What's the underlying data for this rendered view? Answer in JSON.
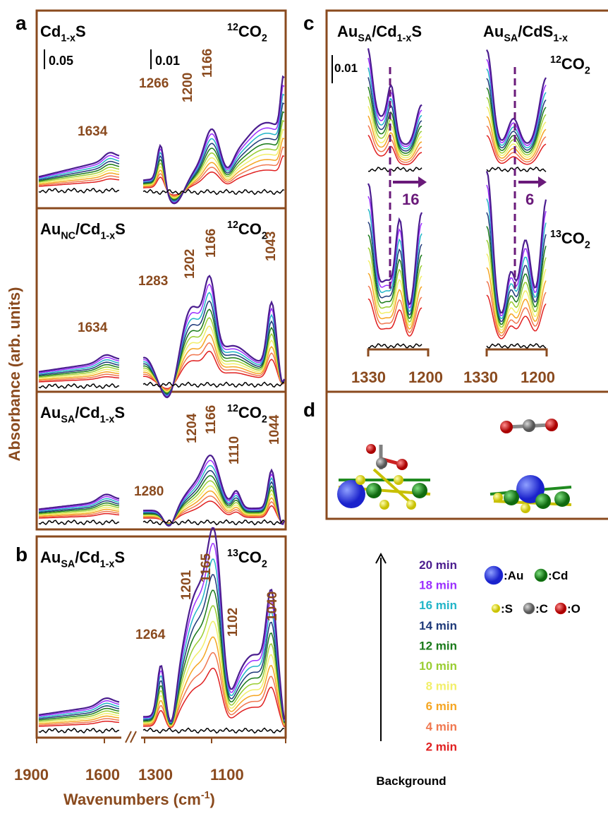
{
  "panel_labels": [
    "a",
    "b",
    "c",
    "d"
  ],
  "y_axis_label": "Absorbance (arb. units)",
  "x_axis_label": [
    {
      "text": "Wavenumbers (cm"
    },
    {
      "text": "-1",
      "sup": true
    },
    {
      "text": ")"
    }
  ],
  "x_ticks": [
    "1900",
    "1600",
    "1300",
    "1100"
  ],
  "panel_a": [
    {
      "sample": [
        {
          "text": "Cd"
        },
        {
          "text": "1-x",
          "sub": true
        },
        {
          "text": "S"
        }
      ],
      "gas": [
        {
          "text": "12",
          "sup": true
        },
        {
          "text": "CO"
        },
        {
          "text": "2",
          "sub": true
        }
      ],
      "scales": [
        "0.05",
        "0.01"
      ],
      "peaks": [
        "1634",
        "1266",
        "1200",
        "1166"
      ]
    },
    {
      "sample": [
        {
          "text": "Au"
        },
        {
          "text": "NC",
          "sub": true
        },
        {
          "text": "/Cd"
        },
        {
          "text": "1-x",
          "sub": true
        },
        {
          "text": "S"
        }
      ],
      "gas": [
        {
          "text": "12",
          "sup": true
        },
        {
          "text": "CO"
        },
        {
          "text": "2",
          "sub": true
        }
      ],
      "scales": [],
      "peaks": [
        "1634",
        "1283",
        "1202",
        "1166",
        "1043"
      ]
    },
    {
      "sample": [
        {
          "text": "Au"
        },
        {
          "text": "SA",
          "sub": true
        },
        {
          "text": "/Cd"
        },
        {
          "text": "1-x",
          "sub": true
        },
        {
          "text": "S"
        }
      ],
      "gas": [
        {
          "text": "12",
          "sup": true
        },
        {
          "text": "CO"
        },
        {
          "text": "2",
          "sub": true
        }
      ],
      "scales": [],
      "peaks": [
        "1280",
        "1204",
        "1166",
        "1110",
        "1044"
      ]
    }
  ],
  "panel_b": {
    "sample": [
      {
        "text": "Au"
      },
      {
        "text": "SA",
        "sub": true
      },
      {
        "text": "/Cd"
      },
      {
        "text": "1-x",
        "sub": true
      },
      {
        "text": "S"
      }
    ],
    "gas": [
      {
        "text": "13",
        "sup": true
      },
      {
        "text": "CO"
      },
      {
        "text": "2",
        "sub": true
      }
    ],
    "peaks": [
      "1264",
      "1201",
      "1165",
      "1102",
      "1040"
    ]
  },
  "panel_c": {
    "samples": [
      [
        {
          "text": "Au"
        },
        {
          "text": "SA",
          "sub": true
        },
        {
          "text": "/Cd"
        },
        {
          "text": "1-x",
          "sub": true
        },
        {
          "text": "S"
        }
      ],
      [
        {
          "text": "Au"
        },
        {
          "text": "SA",
          "sub": true
        },
        {
          "text": "/CdS"
        },
        {
          "text": "1-x",
          "sub": true
        }
      ]
    ],
    "gases": [
      [
        {
          "text": "12",
          "sup": true
        },
        {
          "text": "CO"
        },
        {
          "text": "2",
          "sub": true
        }
      ],
      [
        {
          "text": "13",
          "sup": true
        },
        {
          "text": "CO"
        },
        {
          "text": "2",
          "sub": true
        }
      ]
    ],
    "scale": "0.01",
    "shifts": [
      "16",
      "6"
    ],
    "x_ticks": [
      "1330",
      "1200",
      "1330",
      "1200"
    ]
  },
  "legend": {
    "times": [
      {
        "label": "20 min",
        "color": "#4b1d8f"
      },
      {
        "label": "18 min",
        "color": "#9b30ff"
      },
      {
        "label": "16 min",
        "color": "#22b5c8"
      },
      {
        "label": "14 min",
        "color": "#1f3a7a"
      },
      {
        "label": "12 min",
        "color": "#1a7a1a"
      },
      {
        "label": "10 min",
        "color": "#9acd32"
      },
      {
        "label": "8 min",
        "color": "#f2ef6a"
      },
      {
        "label": "6 min",
        "color": "#f5a623"
      },
      {
        "label": "4 min",
        "color": "#f07850"
      },
      {
        "label": "2 min",
        "color": "#e02020"
      }
    ],
    "background": "Background",
    "atoms": [
      {
        "label": ":Au",
        "color": "#2233dd"
      },
      {
        "label": ":Cd",
        "color": "#1f8a1f"
      },
      {
        "label": ":S",
        "color": "#e8e020"
      },
      {
        "label": ":C",
        "color": "#808080"
      },
      {
        "label": ":O",
        "color": "#dd1111"
      }
    ]
  }
}
